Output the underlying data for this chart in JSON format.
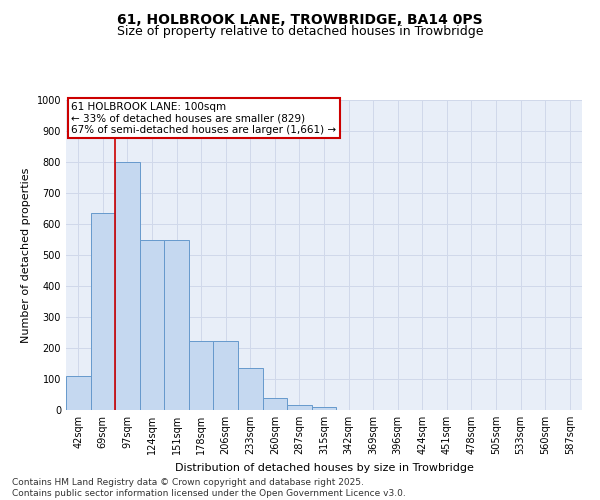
{
  "title_line1": "61, HOLBROOK LANE, TROWBRIDGE, BA14 0PS",
  "title_line2": "Size of property relative to detached houses in Trowbridge",
  "xlabel": "Distribution of detached houses by size in Trowbridge",
  "ylabel": "Number of detached properties",
  "categories": [
    "42sqm",
    "69sqm",
    "97sqm",
    "124sqm",
    "151sqm",
    "178sqm",
    "206sqm",
    "233sqm",
    "260sqm",
    "287sqm",
    "315sqm",
    "342sqm",
    "369sqm",
    "396sqm",
    "424sqm",
    "451sqm",
    "478sqm",
    "505sqm",
    "533sqm",
    "560sqm",
    "587sqm"
  ],
  "values": [
    110,
    635,
    800,
    548,
    548,
    222,
    222,
    135,
    40,
    15,
    10,
    0,
    0,
    0,
    0,
    0,
    0,
    0,
    0,
    0,
    0
  ],
  "bar_color": "#c5d8f0",
  "bar_edge_color": "#6699cc",
  "vline_color": "#cc0000",
  "annotation_text": "61 HOLBROOK LANE: 100sqm\n← 33% of detached houses are smaller (829)\n67% of semi-detached houses are larger (1,661) →",
  "annotation_box_facecolor": "#ffffff",
  "annotation_box_edgecolor": "#cc0000",
  "ylim": [
    0,
    1000
  ],
  "yticks": [
    0,
    100,
    200,
    300,
    400,
    500,
    600,
    700,
    800,
    900,
    1000
  ],
  "grid_color": "#d0d8ea",
  "background_color": "#e8eef8",
  "footer_text": "Contains HM Land Registry data © Crown copyright and database right 2025.\nContains public sector information licensed under the Open Government Licence v3.0.",
  "title_fontsize": 10,
  "subtitle_fontsize": 9,
  "axis_label_fontsize": 8,
  "tick_fontsize": 7,
  "footer_fontsize": 6.5,
  "annotation_fontsize": 7.5
}
